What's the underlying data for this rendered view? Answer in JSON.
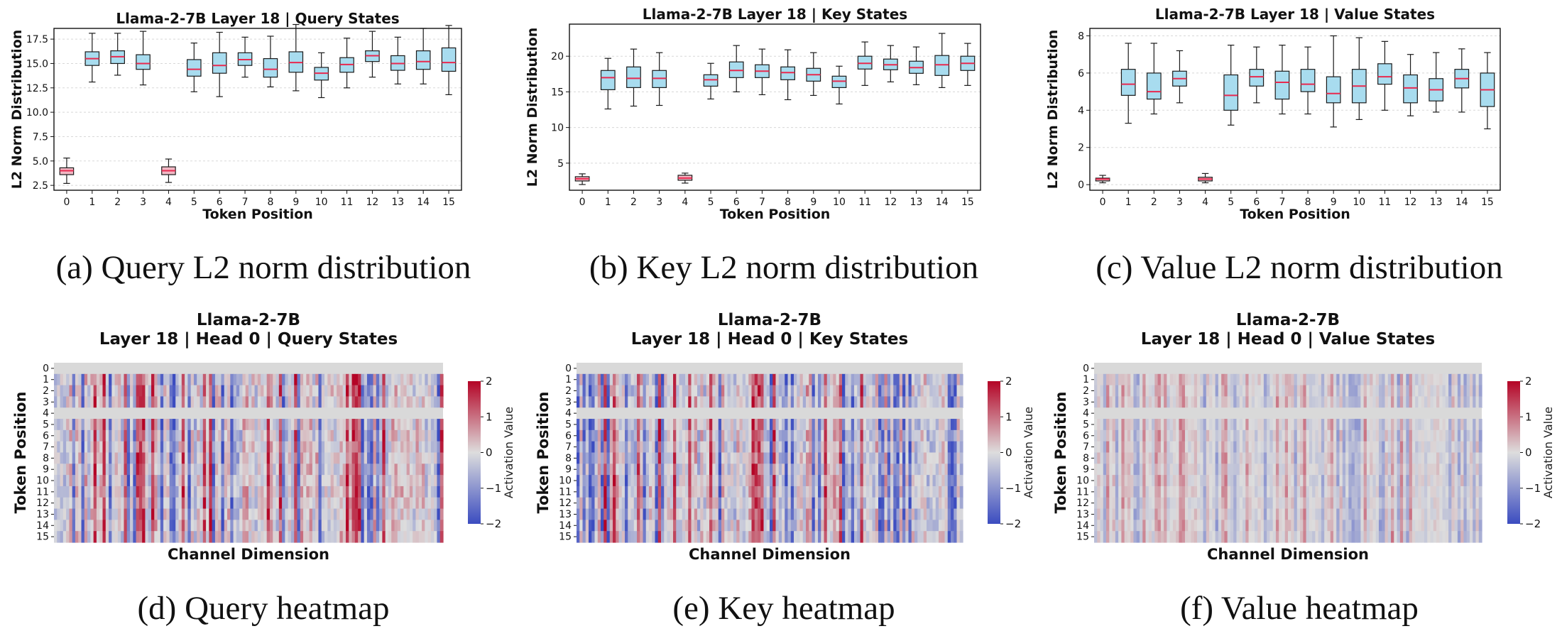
{
  "chart_data": [
    {
      "type": "box",
      "title": "Llama-2-7B Layer 18 | Query States",
      "xlabel": "Token Position",
      "ylabel": "L2 Norm Distribution",
      "caption": "(a) Query L2 norm distribution",
      "categories": [
        "0",
        "1",
        "2",
        "3",
        "4",
        "5",
        "6",
        "7",
        "8",
        "9",
        "10",
        "11",
        "12",
        "13",
        "14",
        "15"
      ],
      "ylim": [
        2.0,
        18.6
      ],
      "yticks": [
        2.5,
        5.0,
        7.5,
        10.0,
        12.5,
        15.0,
        17.5
      ],
      "ytick_labels": [
        "2.5",
        "5.0",
        "7.5",
        "10.0",
        "12.5",
        "15.0",
        "17.5"
      ],
      "grid": "y-dashed",
      "boxes": [
        {
          "min": 2.7,
          "q1": 3.6,
          "median": 4.0,
          "q3": 4.3,
          "max": 5.3
        },
        {
          "min": 13.1,
          "q1": 14.8,
          "median": 15.5,
          "q3": 16.2,
          "max": 18.1
        },
        {
          "min": 13.8,
          "q1": 15.0,
          "median": 15.7,
          "q3": 16.3,
          "max": 18.1
        },
        {
          "min": 12.8,
          "q1": 14.4,
          "median": 15.0,
          "q3": 15.9,
          "max": 18.3
        },
        {
          "min": 2.8,
          "q1": 3.6,
          "median": 4.0,
          "q3": 4.4,
          "max": 5.2
        },
        {
          "min": 12.1,
          "q1": 13.7,
          "median": 14.4,
          "q3": 15.4,
          "max": 17.1
        },
        {
          "min": 11.6,
          "q1": 14.0,
          "median": 14.8,
          "q3": 16.1,
          "max": 18.2
        },
        {
          "min": 13.6,
          "q1": 14.8,
          "median": 15.4,
          "q3": 16.1,
          "max": 17.7
        },
        {
          "min": 12.6,
          "q1": 13.6,
          "median": 14.4,
          "q3": 15.5,
          "max": 17.8
        },
        {
          "min": 12.2,
          "q1": 14.1,
          "median": 15.1,
          "q3": 16.2,
          "max": 19.0
        },
        {
          "min": 11.5,
          "q1": 13.3,
          "median": 14.0,
          "q3": 14.6,
          "max": 16.1
        },
        {
          "min": 12.5,
          "q1": 14.1,
          "median": 14.9,
          "q3": 15.6,
          "max": 17.6
        },
        {
          "min": 13.6,
          "q1": 15.2,
          "median": 15.8,
          "q3": 16.3,
          "max": 18.3
        },
        {
          "min": 12.9,
          "q1": 14.3,
          "median": 15.0,
          "q3": 15.8,
          "max": 17.7
        },
        {
          "min": 12.9,
          "q1": 14.4,
          "median": 15.2,
          "q3": 16.3,
          "max": 18.6
        },
        {
          "min": 11.8,
          "q1": 14.2,
          "median": 15.1,
          "q3": 16.6,
          "max": 18.9
        }
      ]
    },
    {
      "type": "box",
      "title": "Llama-2-7B Layer 18 | Key States",
      "xlabel": "Token Position",
      "ylabel": "L2 Norm Distribution",
      "caption": "(b) Key L2 norm distribution",
      "categories": [
        "0",
        "1",
        "2",
        "3",
        "4",
        "5",
        "6",
        "7",
        "8",
        "9",
        "10",
        "11",
        "12",
        "13",
        "14",
        "15"
      ],
      "ylim": [
        1.2,
        24.5
      ],
      "yticks": [
        5,
        10,
        15,
        20
      ],
      "ytick_labels": [
        "5",
        "10",
        "15",
        "20"
      ],
      "grid": "y-dashed",
      "boxes": [
        {
          "min": 2.0,
          "q1": 2.5,
          "median": 2.8,
          "q3": 3.1,
          "max": 3.5
        },
        {
          "min": 12.6,
          "q1": 15.3,
          "median": 17.0,
          "q3": 18.0,
          "max": 19.7
        },
        {
          "min": 13.0,
          "q1": 15.6,
          "median": 16.9,
          "q3": 18.5,
          "max": 21.0
        },
        {
          "min": 13.1,
          "q1": 15.6,
          "median": 16.9,
          "q3": 18.0,
          "max": 20.5
        },
        {
          "min": 2.2,
          "q1": 2.6,
          "median": 2.9,
          "q3": 3.3,
          "max": 3.6
        },
        {
          "min": 14.0,
          "q1": 15.8,
          "median": 16.7,
          "q3": 17.4,
          "max": 19.0
        },
        {
          "min": 15.0,
          "q1": 17.0,
          "median": 18.0,
          "q3": 19.2,
          "max": 21.5
        },
        {
          "min": 14.6,
          "q1": 17.0,
          "median": 17.9,
          "q3": 18.8,
          "max": 21.0
        },
        {
          "min": 13.9,
          "q1": 16.7,
          "median": 17.7,
          "q3": 18.5,
          "max": 20.9
        },
        {
          "min": 14.5,
          "q1": 16.5,
          "median": 17.4,
          "q3": 18.3,
          "max": 20.5
        },
        {
          "min": 13.3,
          "q1": 15.6,
          "median": 16.5,
          "q3": 17.2,
          "max": 18.6
        },
        {
          "min": 15.9,
          "q1": 18.2,
          "median": 19.0,
          "q3": 20.0,
          "max": 22.0
        },
        {
          "min": 16.4,
          "q1": 18.1,
          "median": 18.8,
          "q3": 19.6,
          "max": 21.5
        },
        {
          "min": 16.0,
          "q1": 17.6,
          "median": 18.4,
          "q3": 19.3,
          "max": 21.3
        },
        {
          "min": 15.6,
          "q1": 17.3,
          "median": 18.8,
          "q3": 20.1,
          "max": 23.2
        },
        {
          "min": 15.9,
          "q1": 18.0,
          "median": 19.0,
          "q3": 20.0,
          "max": 21.8
        }
      ]
    },
    {
      "type": "box",
      "title": "Llama-2-7B Layer 18 | Value States",
      "xlabel": "Token Position",
      "ylabel": "L2 Norm Distribution",
      "caption": "(c) Value L2 norm distribution",
      "categories": [
        "0",
        "1",
        "2",
        "3",
        "4",
        "5",
        "6",
        "7",
        "8",
        "9",
        "10",
        "11",
        "12",
        "13",
        "14",
        "15"
      ],
      "ylim": [
        -0.3,
        8.4
      ],
      "yticks": [
        0,
        2,
        4,
        6,
        8
      ],
      "ytick_labels": [
        "0",
        "2",
        "4",
        "6",
        "8"
      ],
      "grid": "y-dashed",
      "boxes": [
        {
          "min": 0.1,
          "q1": 0.2,
          "median": 0.3,
          "q3": 0.35,
          "max": 0.5
        },
        {
          "min": 3.3,
          "q1": 4.8,
          "median": 5.4,
          "q3": 6.2,
          "max": 7.6
        },
        {
          "min": 3.8,
          "q1": 4.6,
          "median": 5.0,
          "q3": 6.0,
          "max": 7.6
        },
        {
          "min": 4.4,
          "q1": 5.3,
          "median": 5.7,
          "q3": 6.1,
          "max": 7.2
        },
        {
          "min": 0.1,
          "q1": 0.2,
          "median": 0.3,
          "q3": 0.4,
          "max": 0.6
        },
        {
          "min": 3.2,
          "q1": 4.0,
          "median": 4.8,
          "q3": 5.9,
          "max": 7.5
        },
        {
          "min": 4.4,
          "q1": 5.3,
          "median": 5.8,
          "q3": 6.2,
          "max": 7.4
        },
        {
          "min": 3.8,
          "q1": 4.6,
          "median": 5.5,
          "q3": 6.1,
          "max": 7.5
        },
        {
          "min": 3.8,
          "q1": 5.0,
          "median": 5.4,
          "q3": 6.2,
          "max": 7.4
        },
        {
          "min": 3.1,
          "q1": 4.4,
          "median": 4.9,
          "q3": 5.8,
          "max": 8.0
        },
        {
          "min": 3.5,
          "q1": 4.4,
          "median": 5.3,
          "q3": 6.2,
          "max": 7.9
        },
        {
          "min": 4.0,
          "q1": 5.4,
          "median": 5.8,
          "q3": 6.5,
          "max": 7.7
        },
        {
          "min": 3.7,
          "q1": 4.4,
          "median": 5.2,
          "q3": 5.9,
          "max": 7.0
        },
        {
          "min": 3.9,
          "q1": 4.5,
          "median": 5.1,
          "q3": 5.7,
          "max": 7.1
        },
        {
          "min": 3.9,
          "q1": 5.2,
          "median": 5.7,
          "q3": 6.2,
          "max": 7.3
        },
        {
          "min": 3.0,
          "q1": 4.2,
          "median": 5.1,
          "q3": 6.0,
          "max": 7.1
        }
      ]
    },
    {
      "type": "heatmap",
      "title_line1": "Llama-2-7B",
      "title_line2": "Layer 18 | Head 0 | Query States",
      "xlabel": "Channel Dimension",
      "ylabel": "Token Position",
      "caption": "(d) Query heatmap",
      "rows": [
        "0",
        "1",
        "2",
        "3",
        "4",
        "5",
        "6",
        "7",
        "8",
        "9",
        "10",
        "11",
        "12",
        "13",
        "14",
        "15"
      ],
      "colorbar": {
        "label": "Activation Value",
        "ticks": [
          2,
          1,
          0,
          -1,
          -2
        ],
        "tick_labels": [
          "2",
          "1",
          "0",
          "−1",
          "−2"
        ],
        "colormap": "coolwarm",
        "range": [
          -2,
          2
        ]
      },
      "grey_rows": [
        0,
        4
      ],
      "channels": 128,
      "intensity": 1.0
    },
    {
      "type": "heatmap",
      "title_line1": "Llama-2-7B",
      "title_line2": "Layer 18 | Head 0 | Key States",
      "xlabel": "Channel Dimension",
      "ylabel": "Token Position",
      "caption": "(e) Key heatmap",
      "rows": [
        "0",
        "1",
        "2",
        "3",
        "4",
        "5",
        "6",
        "7",
        "8",
        "9",
        "10",
        "11",
        "12",
        "13",
        "14",
        "15"
      ],
      "colorbar": {
        "label": "Activation Value",
        "ticks": [
          2,
          1,
          0,
          -1,
          -2
        ],
        "tick_labels": [
          "2",
          "1",
          "0",
          "−1",
          "−2"
        ],
        "colormap": "coolwarm",
        "range": [
          -2,
          2
        ]
      },
      "grey_rows": [
        0,
        4
      ],
      "channels": 128,
      "intensity": 1.0
    },
    {
      "type": "heatmap",
      "title_line1": "Llama-2-7B",
      "title_line2": "Layer 18 | Head 0 | Value States",
      "xlabel": "Channel Dimension",
      "ylabel": "Token Position",
      "caption": "(f) Value heatmap",
      "rows": [
        "0",
        "1",
        "2",
        "3",
        "4",
        "5",
        "6",
        "7",
        "8",
        "9",
        "10",
        "11",
        "12",
        "13",
        "14",
        "15"
      ],
      "colorbar": {
        "label": "Activation Value",
        "ticks": [
          2,
          1,
          0,
          -1,
          -2
        ],
        "tick_labels": [
          "2",
          "1",
          "0",
          "−1",
          "−2"
        ],
        "colormap": "coolwarm",
        "range": [
          -2,
          2
        ]
      },
      "grey_rows": [
        0,
        4
      ],
      "channels": 128,
      "intensity": 0.45
    }
  ],
  "colors": {
    "box_fill": "#a8dcef",
    "box_edge": "#1a1a1a",
    "median": "#e8294f",
    "outlier_box_fill": "#f2b8c4",
    "grey_row": "#d9d9d9",
    "cold": "#3b4cc0",
    "neutral": "#dddddd",
    "warm": "#b40426"
  }
}
